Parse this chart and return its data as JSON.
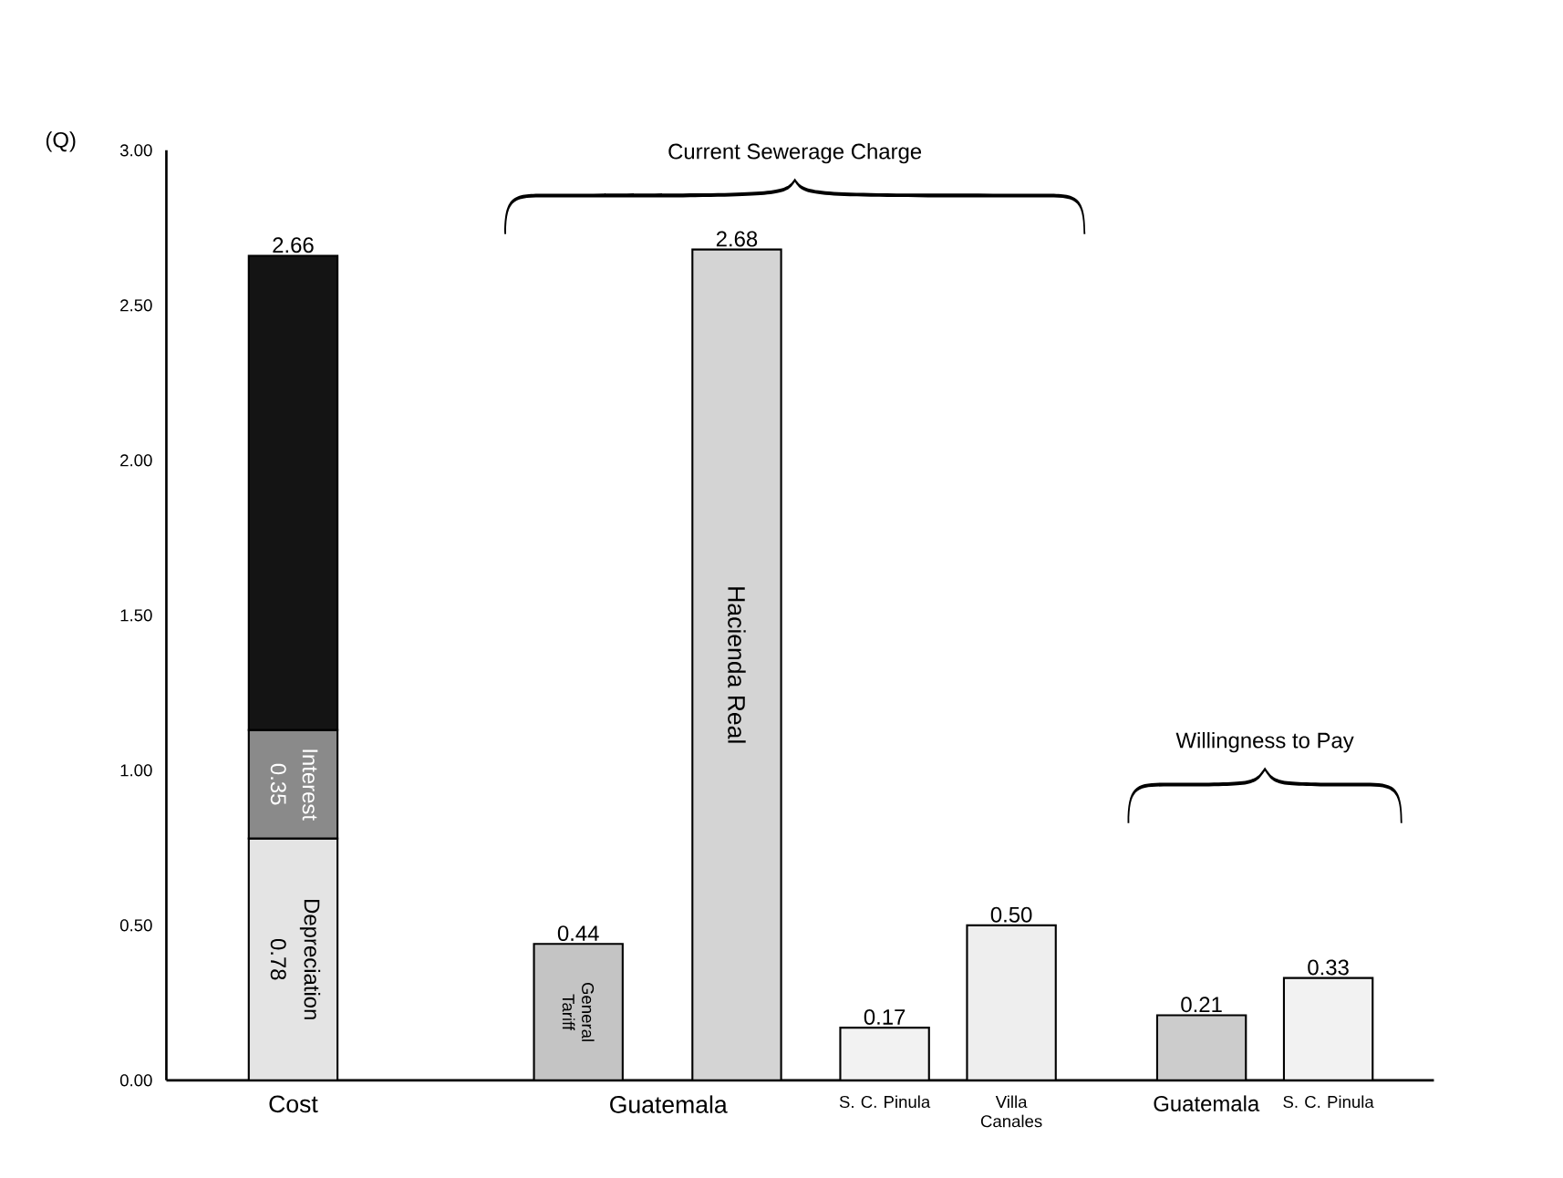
{
  "chart_data": {
    "type": "bar",
    "stacked": true,
    "ylabel": "(Q)",
    "categories": [
      "Cost",
      "Guatemala",
      null,
      "S. C. Pinula",
      "Villa Canales",
      "Guatemala",
      "S. C. Pinula"
    ],
    "series": [
      {
        "name": "Depreciation",
        "colors": [
          "#e4e4e4",
          "#c4c4c4",
          "#d4d4d4",
          "#f2f2f2",
          "#eeeeee",
          "#cccccc",
          "#f2f2f2"
        ],
        "values": [
          0.78,
          0.44,
          2.68,
          0.17,
          0.5,
          0.21,
          0.33
        ],
        "value_labels": [
          "0.78",
          null,
          null,
          null,
          null,
          null,
          null
        ]
      },
      {
        "name": "Interest",
        "color": "#8a8a8a",
        "values": [
          0.35,
          null,
          null,
          null,
          null,
          null,
          null
        ],
        "value_labels": [
          "0.35",
          null,
          null,
          null,
          null,
          null,
          null
        ]
      },
      {
        "color": "#141414",
        "values": [
          1.53,
          null,
          null,
          null,
          null,
          null,
          null
        ]
      }
    ],
    "totals": [
      "2.66",
      "0.44",
      "2.68",
      "0.17",
      "0.50",
      "0.21",
      "0.33"
    ],
    "ylim": [
      0,
      3
    ],
    "yticks": [
      {
        "value": 0,
        "label": "0.00"
      },
      {
        "value": 0.5,
        "label": "0.50"
      },
      {
        "value": 1,
        "label": "1.00"
      },
      {
        "value": 1.5,
        "label": "1.50"
      },
      {
        "value": 2,
        "label": "2.00"
      },
      {
        "value": 2.5,
        "label": "2.50"
      },
      {
        "value": 3,
        "label": "3.00"
      }
    ],
    "annotations": [
      "Current Sewerage Charge",
      "Willingness to Pay",
      "General Tariff",
      "Hacienda Real"
    ],
    "grid": false
  }
}
